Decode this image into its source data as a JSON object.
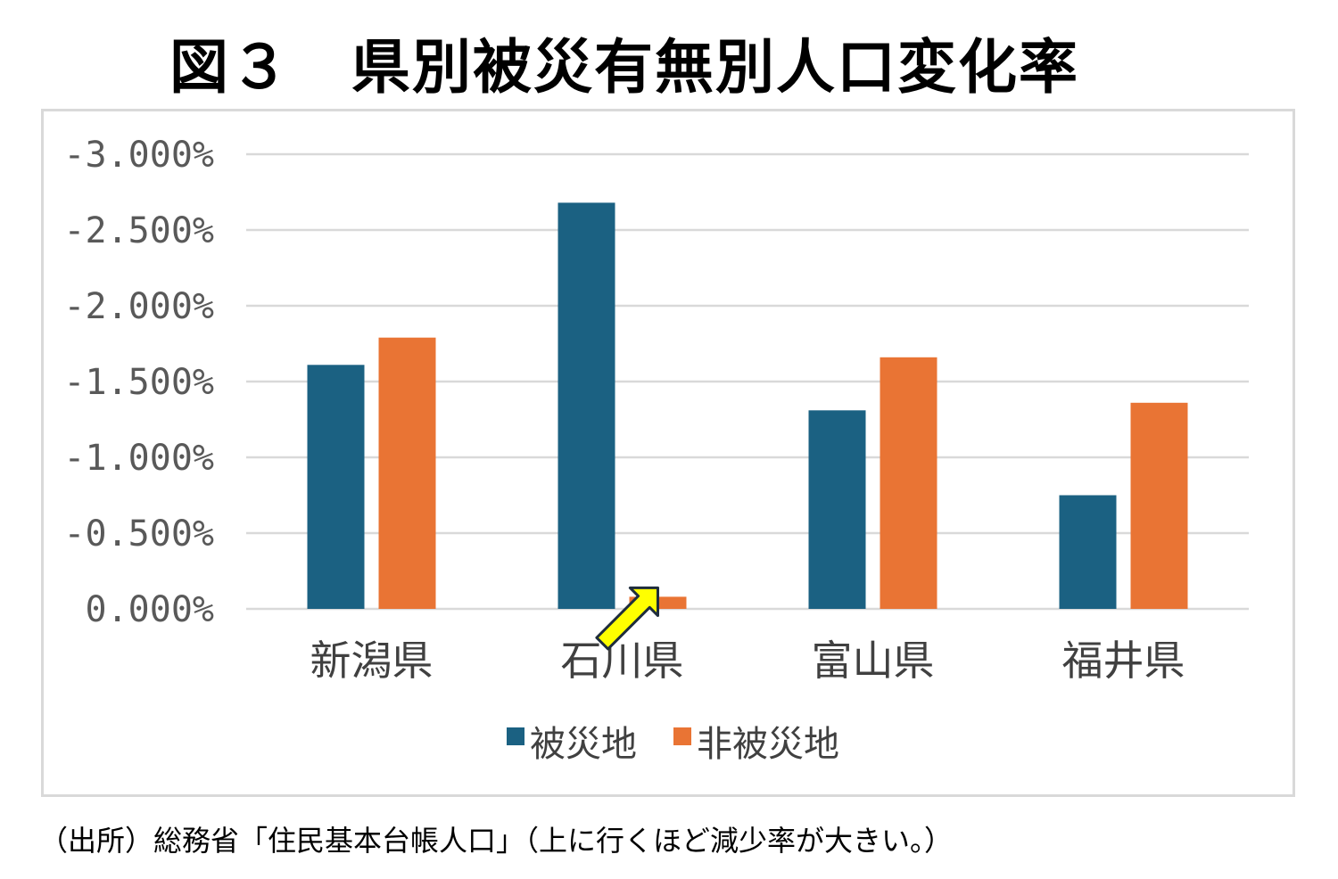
{
  "title": "図３　県別被災有無別人口変化率",
  "source_note": "（出所）総務省「住民基本台帳人口」（上に行くほど減少率が大きい。）",
  "colors": {
    "disaster_area": "#1b6182",
    "non_disaster_area": "#e97434",
    "gridline": "#d9d9d9",
    "arrow_fill": "#ffff00",
    "arrow_stroke": "#1f2d3d"
  },
  "annotation": {
    "icon": "yellow-arrow-icon",
    "points_to": "石川県 非被災地"
  },
  "chart_data": {
    "type": "bar",
    "title": "図３　県別被災有無別人口変化率",
    "xlabel": "",
    "ylabel": "",
    "ylim": [
      0,
      -3.0
    ],
    "y_axis_reversed": true,
    "y_ticks": [
      "-3.000%",
      "-2.500%",
      "-2.000%",
      "-1.500%",
      "-1.000%",
      "-0.500%",
      "0.000%"
    ],
    "y_tick_values": [
      -3.0,
      -2.5,
      -2.0,
      -1.5,
      -1.0,
      -0.5,
      0.0
    ],
    "categories": [
      "新潟県",
      "石川県",
      "富山県",
      "福井県"
    ],
    "series": [
      {
        "name": "被災地",
        "values": [
          -1.61,
          -2.68,
          -1.31,
          -0.75
        ]
      },
      {
        "name": "非被災地",
        "values": [
          -1.79,
          -0.08,
          -1.66,
          -1.36
        ]
      }
    ],
    "grid": true,
    "legend_position": "bottom"
  }
}
